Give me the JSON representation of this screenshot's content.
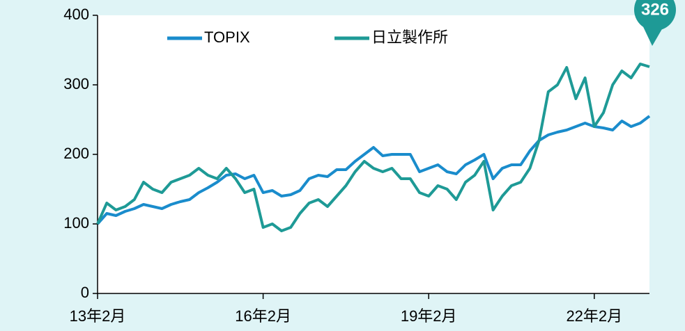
{
  "chart_data": {
    "type": "line",
    "categories": [
      "13年2月",
      null,
      null,
      null,
      null,
      null,
      null,
      null,
      null,
      null,
      null,
      null,
      null,
      null,
      null,
      null,
      null,
      null,
      "16年2月",
      null,
      null,
      null,
      null,
      null,
      null,
      null,
      null,
      null,
      null,
      null,
      null,
      null,
      null,
      null,
      null,
      null,
      "19年2月",
      null,
      null,
      null,
      null,
      null,
      null,
      null,
      null,
      null,
      null,
      null,
      null,
      null,
      null,
      null,
      null,
      null,
      "22年2月",
      null,
      null,
      null,
      null,
      null,
      null
    ],
    "series": [
      {
        "name": "TOPIX",
        "color": "#1a8ccc",
        "values": [
          100,
          115,
          112,
          118,
          122,
          128,
          125,
          122,
          128,
          132,
          135,
          145,
          152,
          160,
          170,
          172,
          165,
          170,
          145,
          148,
          140,
          142,
          148,
          165,
          170,
          168,
          178,
          178,
          190,
          200,
          210,
          198,
          200,
          200,
          200,
          175,
          180,
          185,
          175,
          172,
          185,
          192,
          200,
          165,
          180,
          185,
          185,
          205,
          220,
          228,
          232,
          235,
          240,
          245,
          240,
          238,
          235,
          248,
          240,
          245,
          255
        ]
      },
      {
        "name": "日立製作所",
        "color": "#1e9a96",
        "values": [
          100,
          130,
          120,
          125,
          135,
          160,
          150,
          145,
          160,
          165,
          170,
          180,
          170,
          165,
          180,
          165,
          145,
          150,
          95,
          100,
          90,
          95,
          115,
          130,
          135,
          125,
          140,
          155,
          175,
          190,
          180,
          175,
          180,
          165,
          165,
          145,
          140,
          155,
          150,
          135,
          160,
          170,
          190,
          120,
          140,
          155,
          160,
          180,
          220,
          290,
          300,
          325,
          280,
          310,
          240,
          260,
          300,
          320,
          310,
          330,
          326
        ]
      }
    ],
    "annotation": "326",
    "ylim": [
      0,
      400
    ],
    "yticks": [
      0,
      100,
      200,
      300,
      400
    ],
    "grid": false
  }
}
